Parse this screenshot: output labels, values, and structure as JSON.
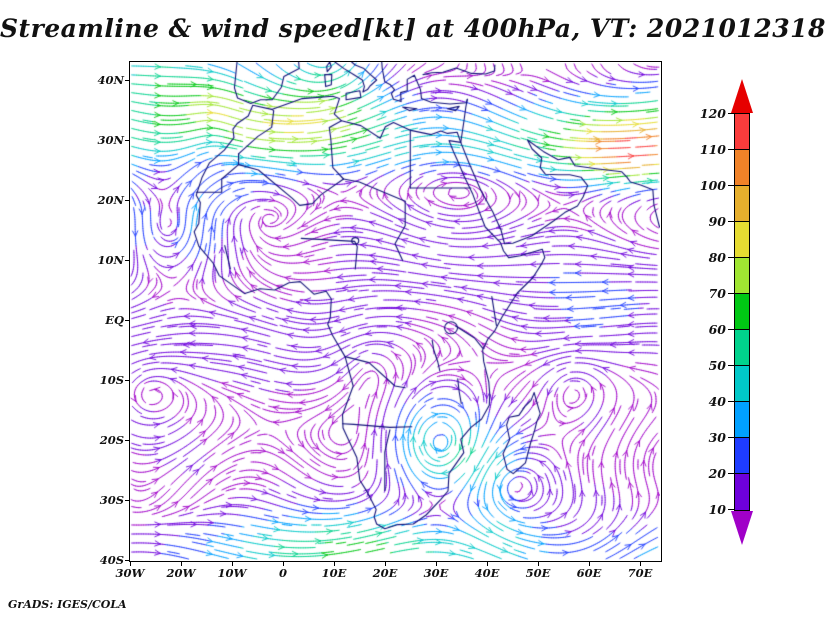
{
  "title": "Streamline & wind speed[kt] at 400hPa, VT: 2021012318",
  "credit": "GrADS: IGES/COLA",
  "axes": {
    "y_ticks": [
      "40N",
      "30N",
      "20N",
      "10N",
      "EQ",
      "10S",
      "20S",
      "30S",
      "40S"
    ],
    "x_ticks": [
      "30W",
      "20W",
      "10W",
      "0",
      "10E",
      "20E",
      "30E",
      "40E",
      "50E",
      "60E",
      "70E"
    ]
  },
  "colorbar": {
    "levels": [
      10,
      20,
      30,
      40,
      50,
      60,
      70,
      80,
      90,
      100,
      110,
      120
    ],
    "colors": [
      "#A000C8",
      "#6E00DC",
      "#1E3CFF",
      "#00A0FF",
      "#00C8C8",
      "#00D28C",
      "#00C814",
      "#A0E632",
      "#E6DC32",
      "#E6AF2D",
      "#F08228",
      "#FA3C3C",
      "#E60000"
    ],
    "units": "kt"
  },
  "map": {
    "line_color": "#101078"
  },
  "chart_data": {
    "type": "streamline",
    "title": "Streamline & wind speed[kt] at 400hPa, VT: 2021012318",
    "field": "horizontal wind streamlines",
    "shading_variable": "wind speed",
    "units": "kt",
    "pressure_level_hPa": 400,
    "valid_time": "2021012318",
    "region": "Africa and surrounding oceans, 30W-75E, 40S-43N",
    "x_axis": {
      "label": "longitude",
      "ticks": [
        "30W",
        "20W",
        "10W",
        "0",
        "10E",
        "20E",
        "30E",
        "40E",
        "50E",
        "60E",
        "70E"
      ],
      "range_deg": [
        -30,
        74
      ]
    },
    "y_axis": {
      "label": "latitude",
      "ticks": [
        "40N",
        "30N",
        "20N",
        "10N",
        "EQ",
        "10S",
        "20S",
        "30S",
        "40S"
      ],
      "range_deg": [
        -40,
        43
      ]
    },
    "colorbar": {
      "orientation": "vertical",
      "position": "right",
      "levels_kt": [
        10,
        20,
        30,
        40,
        50,
        60,
        70,
        80,
        90,
        100,
        110,
        120
      ]
    },
    "notable_features": [
      "Weak winds (10-20 kt, purple streamlines) dominate the tropics between about 15N and 35S",
      "Northern subtropical jet across North Africa and the Middle East (25-40N) with 40-100+ kt (cyan/green/yellow/orange)",
      "Southern midlatitude jet near 35-40S with 30-70 kt (cyan/green band along bottom of map)",
      "Closed cyclonic circulation near 21S 31E over southern Mozambique with a ~40-50 kt cyan ring",
      "Large gyre near 16N 22W over the eastern tropical Atlantic",
      "High-speed patch (orange/red, 100-120 kt) near the top right of the domain around 27N 65-70E"
    ],
    "credit": "GrADS: IGES/COLA"
  }
}
